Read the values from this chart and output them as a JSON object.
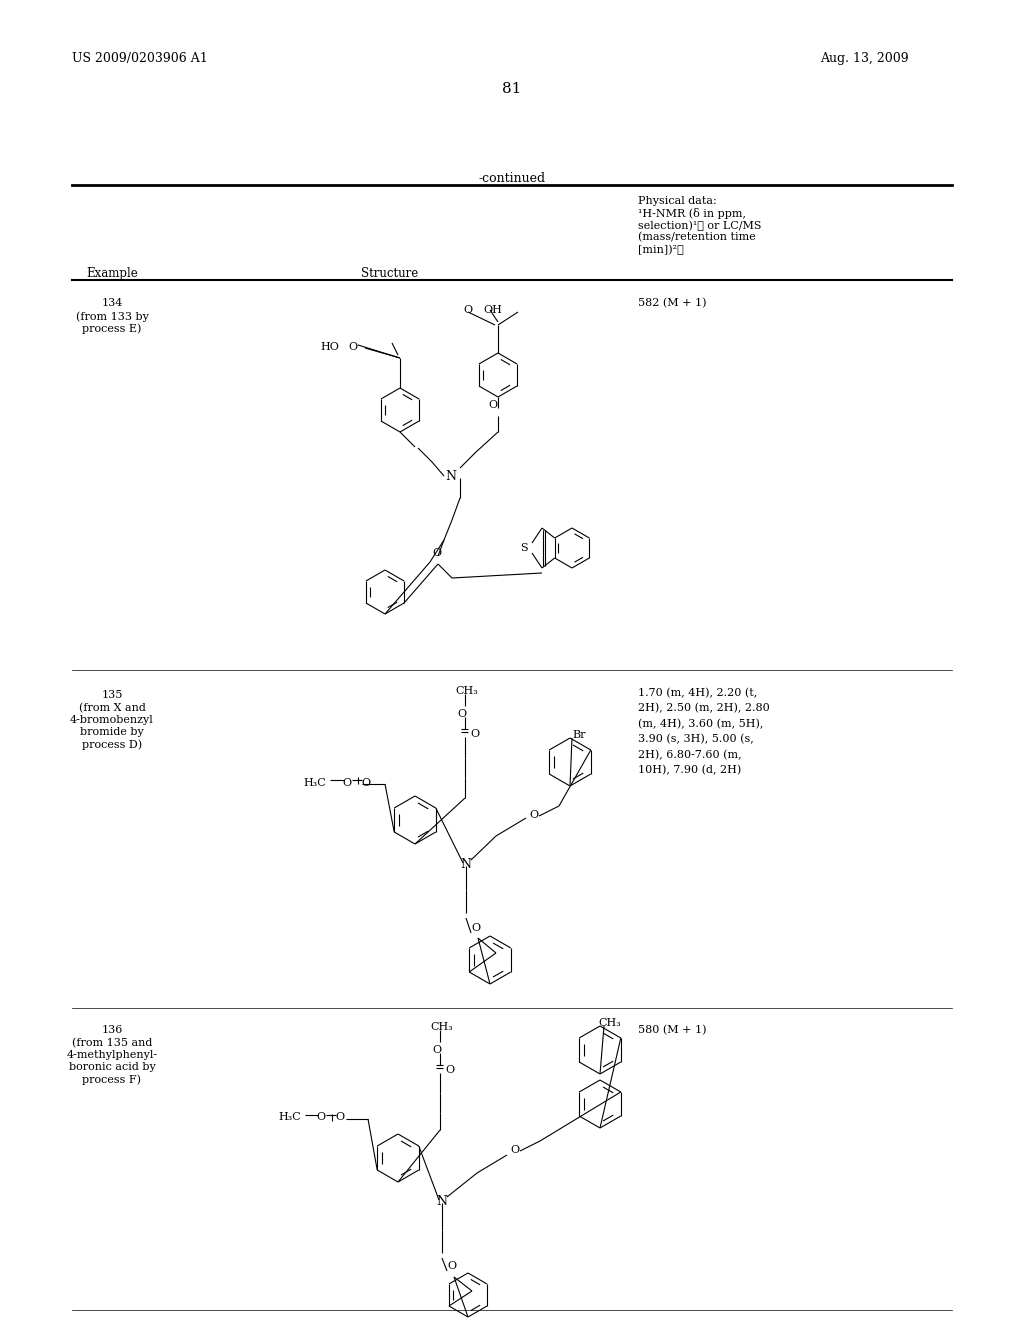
{
  "page_number": "81",
  "patent_number": "US 2009/0203906 A1",
  "patent_date": "Aug. 13, 2009",
  "continued_label": "-continued",
  "col_example": "Example",
  "col_structure": "Structure",
  "phys_header": [
    "Physical data:",
    "¹H-NMR (δ in ppm,",
    "selection)¹⧐ or LC/MS",
    "(mass/retention time",
    "[min])²⧐"
  ],
  "r1_id": "134",
  "r1_note": "(from 133 by\nprocess E)",
  "r1_phys": "582 (M + 1)",
  "r2_id": "135",
  "r2_note": "(from X and\n4-bromobenzyl\nbromide by\nprocess D)",
  "r2_phys": "1.70 (m, 4H), 2.20 (t,\n2H), 2.50 (m, 2H), 2.80\n(m, 4H), 3.60 (m, 5H),\n3.90 (s, 3H), 5.00 (s,\n2H), 6.80-7.60 (m,\n10H), 7.90 (d, 2H)",
  "r3_id": "136",
  "r3_note": "(from 135 and\n4-methylphenyl-\nboronic acid by\nprocess F)",
  "r3_phys": "580 (M + 1)",
  "bg": "#ffffff",
  "black": "#000000"
}
